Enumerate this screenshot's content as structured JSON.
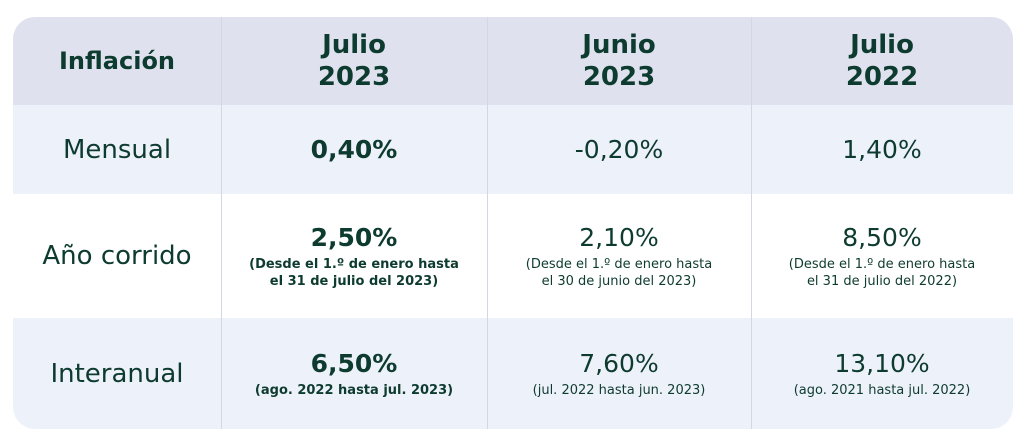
{
  "header": {
    "label": "Inflación",
    "columns": [
      {
        "line1": "Julio",
        "line2": "2023"
      },
      {
        "line1": "Junio",
        "line2": "2023"
      },
      {
        "line1": "Julio",
        "line2": "2022"
      }
    ]
  },
  "rows": [
    {
      "label": "Mensual",
      "cells": [
        {
          "value": "0,40%"
        },
        {
          "value": "-0,20%"
        },
        {
          "value": "1,40%"
        }
      ]
    },
    {
      "label": "Año corrido",
      "cells": [
        {
          "value": "2,50%",
          "note1": "(Desde el 1.º de enero hasta",
          "note2": "el 31 de julio del 2023)"
        },
        {
          "value": "2,10%",
          "note1": "(Desde el 1.º de enero hasta",
          "note2": "el 30 de junio del 2023)"
        },
        {
          "value": "8,50%",
          "note1": "(Desde el 1.º de enero hasta",
          "note2": "el 31 de julio del 2022)"
        }
      ]
    },
    {
      "label": "Interanual",
      "cells": [
        {
          "value": "6,50%",
          "note1": "(ago. 2022 hasta jul. 2023)"
        },
        {
          "value": "7,60%",
          "note1": "(jul. 2022 hasta jun. 2023)"
        },
        {
          "value": "13,10%",
          "note1": "(ago. 2021 hasta jul. 2022)"
        }
      ]
    }
  ],
  "colors": {
    "text": "#0e3b2f",
    "header_bg": "#dfe2ee",
    "stripe_bg": "#edf1fa",
    "white_bg": "#ffffff"
  }
}
